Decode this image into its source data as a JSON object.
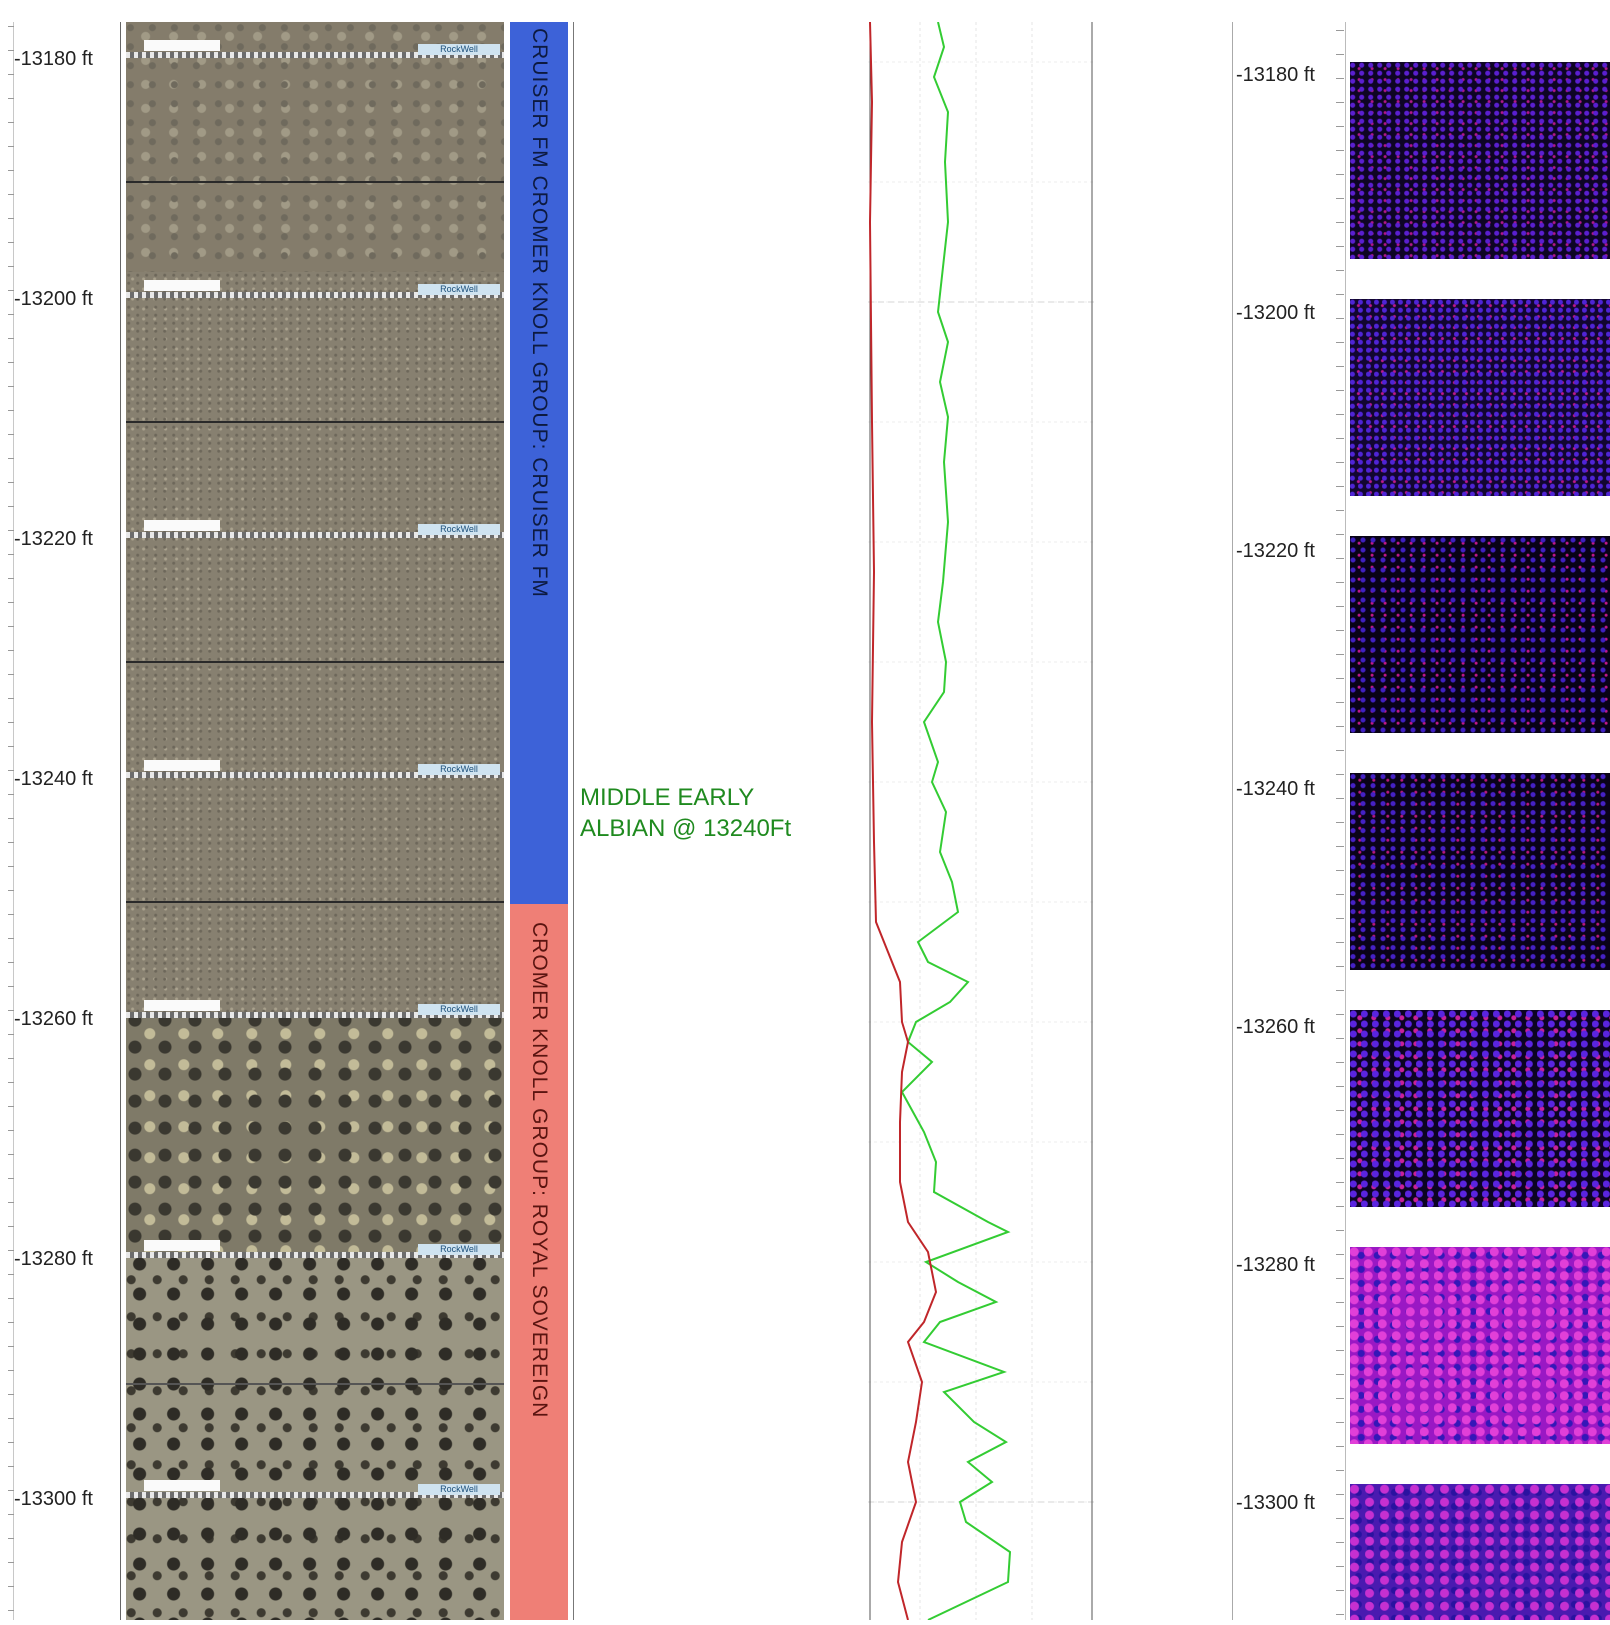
{
  "depth_track_left": {
    "labels": [
      "-13180 ft",
      "-13200 ft",
      "-13220 ft",
      "-13240 ft",
      "-13260 ft",
      "-13280 ft",
      "-13300 ft"
    ]
  },
  "core_photos": {
    "brand_label": "RockWell"
  },
  "formation_bar": {
    "upper": {
      "label": "CRUISER FM    CROMER KNOLL GROUP: CRUISER FM",
      "color": "#3d62d8"
    },
    "lower": {
      "label": "CROMER KNOLL GROUP: ROYAL SOVEREIGN",
      "color": "#ef7f76"
    }
  },
  "annotation": {
    "line1": "MIDDLE EARLY",
    "line2": "ALBIAN @ 13240Ft",
    "color": "#1f8a1f"
  },
  "log_track": {
    "red_curve_color": "#c0262a",
    "green_curve_color": "#33cc33"
  },
  "depth_track_right": {
    "labels": [
      "-13180 ft",
      "-13200 ft",
      "-13220 ft",
      "-13240 ft",
      "-13260 ft",
      "-13280 ft",
      "-13300 ft"
    ]
  },
  "image_log": {
    "color_dark": "#0a0318",
    "color_purple": "#4a1ab0",
    "color_magenta": "#c21ec8"
  }
}
